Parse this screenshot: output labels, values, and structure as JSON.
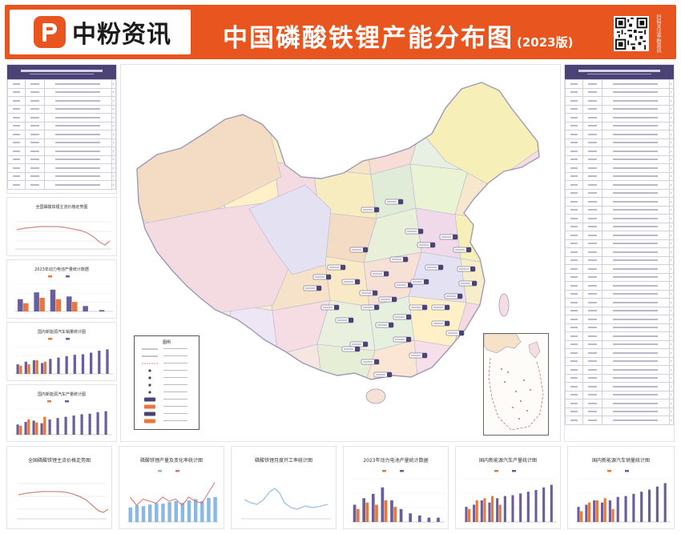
{
  "header": {
    "brand_name": "中粉资讯",
    "title": "中国磷酸铁锂产能分布图",
    "year": "(2023版)",
    "qr_caption": "扫码关注中粉资讯"
  },
  "map": {
    "legend_title": "图例",
    "colors": {
      "header_orange": "#e8551e",
      "table_header_purple": "#4b4373",
      "bar_purple": "#6a5d9b",
      "bar_orange": "#e9773a",
      "map_border": "#9c9ab8",
      "label_purple": "#4b4373"
    },
    "region_colors": [
      "#f4dcc4",
      "#f3dbe1",
      "#e4e2f2",
      "#e8f0d9",
      "#f6ecc0",
      "#f7eec9",
      "#f0d9e8",
      "#e1ecd8",
      "#f5e4c9",
      "#f6f0b8",
      "#eaf3d4",
      "#f7ddd6",
      "#f2e7f2",
      "#f7e8cd",
      "#e7f0e2",
      "#fbe1cc",
      "#f6e6e0",
      "#eee6f4",
      "#fff6c8",
      "#e6efd6",
      "#f6dde4",
      "#f3edd4",
      "#fbe5d4",
      "#e9f1de",
      "#f5e2c8",
      "#f7dfe9",
      "#e5f0de",
      "#fae9c6",
      "#f2e1ef",
      "#fff0c8",
      "#f7e0d5"
    ]
  },
  "charts": {
    "left_line_1": {
      "title": "全国磷酸铁锂主流价格走势图"
    },
    "left_bar_1": {
      "title": "2023年动力电池产量统计数据"
    },
    "left_bar_2": {
      "title": "国内新能源汽车销量统计图"
    },
    "left_bar_3": {
      "title": "国内新能源汽车产量统计图"
    },
    "bottom_line_1": {
      "title": "全国磷酸铁锂主流价格走势图"
    },
    "bottom_combo": {
      "title": "磷酸铁锂产量及变化率统计图"
    },
    "bottom_line_2": {
      "title": "磷酸铁锂月度开工率统计图"
    },
    "bottom_bar_1": {
      "title": "2023年动力电池产量统计数据"
    },
    "bottom_bar_2": {
      "title": "国内新能源汽车产量统计图"
    },
    "bottom_bar_3": {
      "title": "国内新能源汽车销量统计图"
    }
  }
}
